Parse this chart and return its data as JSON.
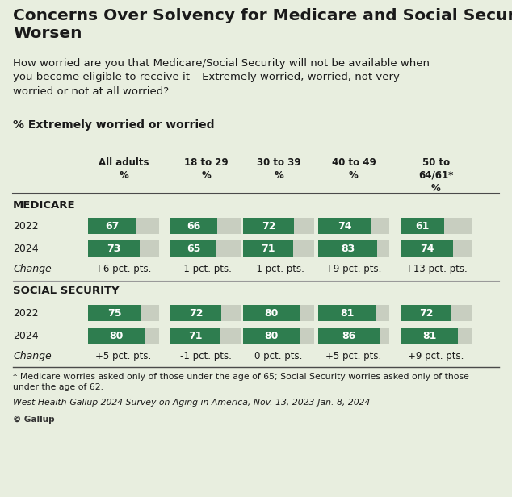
{
  "title": "Concerns Over Solvency for Medicare and Social Security\nWorsen",
  "subtitle": "How worried are you that Medicare/Social Security will not be available when\nyou become eligible to receive it – Extremely worried, worried, not very\nworried or not at all worried?",
  "subtitle2": "% Extremely worried or worried",
  "columns": [
    "All adults\n%",
    "18 to 29\n%",
    "30 to 39\n%",
    "40 to 49\n%",
    "50 to\n64/61*\n%"
  ],
  "medicare": {
    "label": "MEDICARE",
    "year2022": [
      67,
      66,
      72,
      74,
      61
    ],
    "year2024": [
      73,
      65,
      71,
      83,
      74
    ],
    "change": [
      "+6 pct. pts.",
      "-1 pct. pts.",
      "-1 pct. pts.",
      "+9 pct. pts.",
      "+13 pct. pts."
    ]
  },
  "social_security": {
    "label": "SOCIAL SECURITY",
    "year2022": [
      75,
      72,
      80,
      81,
      72
    ],
    "year2024": [
      80,
      71,
      80,
      86,
      81
    ],
    "change": [
      "+5 pct. pts.",
      "-1 pct. pts.",
      "0 pct. pts.",
      "+5 pct. pts.",
      "+9 pct. pts."
    ]
  },
  "footnote": "* Medicare worries asked only of those under the age of 65; Social Security worries asked only of those\nunder the age of 62.",
  "source": "West Health-Gallup 2024 Survey on Aging in America, Nov. 13, 2023-Jan. 8, 2024",
  "bar_color_green": "#2e7d4f",
  "bar_color_light": "#c8cec0",
  "bg_color": "#e8eedf",
  "text_color": "#1a1a1a",
  "bar_max": 100
}
